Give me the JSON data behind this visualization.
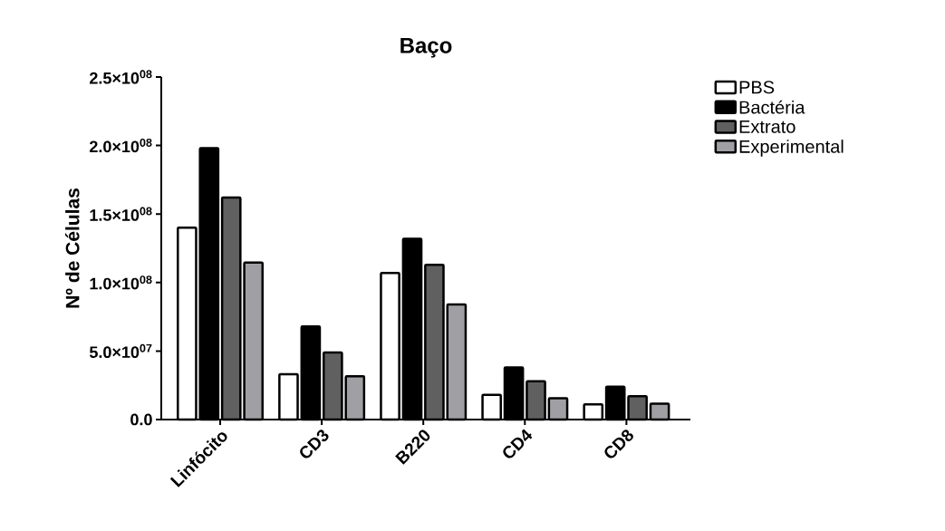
{
  "chart_data": {
    "type": "bar",
    "title": "Baço",
    "ylabel": "Nº de Células",
    "categories": [
      "Linfócito",
      "CD3",
      "B220",
      "CD4",
      "CD8"
    ],
    "series": [
      {
        "name": "PBS",
        "color": "#ffffff",
        "values": [
          140000000,
          33000000,
          107000000,
          18000000,
          11000000
        ]
      },
      {
        "name": "Bactéria",
        "color": "#000000",
        "values": [
          198000000,
          68000000,
          132000000,
          38000000,
          24000000
        ]
      },
      {
        "name": "Extrato",
        "color": "#606060",
        "values": [
          162000000,
          49000000,
          113000000,
          28000000,
          17000000
        ]
      },
      {
        "name": "Experimental",
        "color": "#a0a0a4",
        "values": [
          114500000,
          31500000,
          84000000,
          15500000,
          11500000
        ]
      }
    ],
    "ylim": [
      0,
      250000000
    ],
    "yticks": [
      {
        "value": 0,
        "label": "0.0"
      },
      {
        "value": 50000000,
        "label": "5.0×10$^{07}$"
      },
      {
        "value": 100000000,
        "label": "1.0×10$^{08}$"
      },
      {
        "value": 150000000,
        "label": "1.5×10$^{08}$"
      },
      {
        "value": 200000000,
        "label": "2.0×10$^{08}$"
      },
      {
        "value": 250000000,
        "label": "2.5×10$^{08}$"
      }
    ],
    "grid": false,
    "legend": "top right"
  }
}
